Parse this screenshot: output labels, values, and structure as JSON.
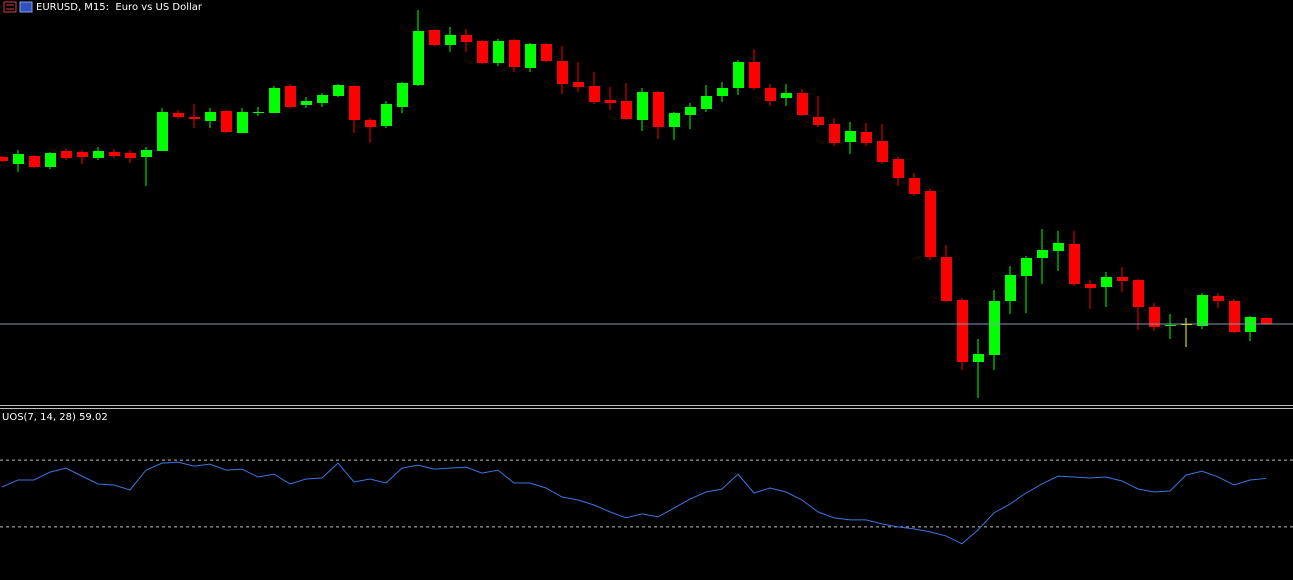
{
  "chart_data": [
    {
      "type": "candlestick",
      "title": "EURUSD, M15:  Euro vs US Dollar",
      "ylim": [
        0,
        405
      ],
      "up_color": "#00ff00",
      "down_color": "#ff0000",
      "doji_color": "#ffff00",
      "price_line_color": "#8899aa",
      "open": [
        248,
        241,
        249,
        238,
        254,
        253,
        247,
        253,
        252,
        248,
        254,
        292,
        288,
        284,
        294,
        272,
        292,
        292,
        319,
        300,
        302,
        309,
        319,
        285,
        279,
        298,
        320,
        375,
        360,
        370,
        364,
        342,
        365,
        337,
        361,
        344,
        323,
        319,
        305,
        304,
        285,
        313,
        278,
        290,
        296,
        309,
        317,
        343,
        317,
        307,
        312,
        288,
        281,
        263,
        273,
        264,
        246,
        227,
        214,
        148,
        105,
        43,
        50,
        104,
        129,
        147,
        154,
        161,
        121,
        118,
        128,
        125,
        98,
        79,
        81,
        79,
        109,
        104,
        73,
        87
      ],
      "high": [
        249,
        255,
        250,
        253,
        256,
        255,
        258,
        256,
        255,
        258,
        297,
        295,
        301,
        297,
        295,
        297,
        298,
        319,
        321,
        308,
        312,
        321,
        320,
        287,
        304,
        323,
        395,
        376,
        378,
        376,
        365,
        366,
        366,
        362,
        362,
        359,
        343,
        333,
        318,
        322,
        317,
        314,
        293,
        302,
        320,
        323,
        345,
        356,
        321,
        321,
        316,
        309,
        287,
        283,
        282,
        281,
        248,
        232,
        216,
        160,
        107,
        66,
        115,
        139,
        149,
        176,
        174,
        174,
        125,
        133,
        138,
        126,
        102,
        91,
        87,
        112,
        112,
        106,
        89,
        88
      ],
      "low": [
        243,
        233,
        237,
        236,
        245,
        241,
        245,
        247,
        242,
        219,
        254,
        286,
        277,
        277,
        272,
        272,
        289,
        292,
        297,
        297,
        298,
        308,
        272,
        262,
        277,
        292,
        319,
        359,
        353,
        353,
        341,
        339,
        333,
        333,
        343,
        311,
        313,
        301,
        295,
        285,
        274,
        266,
        265,
        276,
        293,
        303,
        310,
        315,
        299,
        299,
        289,
        278,
        259,
        251,
        259,
        241,
        219,
        209,
        145,
        103,
        35,
        7,
        35,
        91,
        92,
        121,
        134,
        119,
        96,
        98,
        113,
        75,
        74,
        66,
        58,
        76,
        97,
        72,
        64,
        80
      ],
      "close": [
        244,
        251,
        238,
        252,
        247,
        248,
        254,
        249,
        247,
        255,
        293,
        288,
        286,
        293,
        273,
        293,
        293,
        317,
        298,
        304,
        310,
        320,
        285,
        278,
        301,
        322,
        374,
        360,
        370,
        363,
        342,
        364,
        338,
        361,
        344,
        321,
        318,
        303,
        302,
        286,
        313,
        278,
        292,
        298,
        309,
        317,
        343,
        317,
        304,
        312,
        290,
        280,
        262,
        274,
        262,
        243,
        227,
        211,
        148,
        104,
        43,
        51,
        104,
        130,
        147,
        155,
        162,
        121,
        117,
        128,
        124,
        98,
        78,
        80,
        81,
        110,
        104,
        73,
        88,
        81
      ]
    },
    {
      "type": "line",
      "ylim": [
        0,
        100
      ],
      "levels": [
        70,
        30
      ],
      "series": [
        {
          "name": "UOS(7, 14, 28)",
          "color": "#3d74e0",
          "values": [
            53.9,
            58.1,
            58.1,
            62.8,
            65.2,
            60.4,
            55.7,
            55.1,
            52.1,
            64.0,
            68.2,
            68.8,
            66.4,
            67.6,
            64.0,
            64.6,
            59.9,
            61.6,
            55.7,
            58.7,
            59.3,
            68.2,
            56.9,
            58.7,
            56.3,
            65.2,
            67.0,
            64.6,
            65.2,
            65.8,
            62.2,
            64.0,
            56.3,
            56.3,
            53.3,
            47.9,
            46.1,
            43.1,
            39.0,
            35.4,
            37.8,
            36.0,
            41.3,
            46.7,
            50.9,
            52.7,
            61.6,
            50.3,
            53.3,
            50.9,
            46.1,
            39.0,
            35.4,
            34.2,
            34.2,
            31.8,
            30.0,
            28.8,
            27.0,
            24.6,
            19.9,
            28.2,
            38.4,
            43.7,
            50.3,
            55.7,
            60.4,
            59.9,
            59.3,
            59.9,
            57.5,
            52.7,
            50.9,
            51.5,
            61.0,
            63.4,
            59.9,
            55.1,
            58.1,
            59.02
          ]
        }
      ]
    }
  ]
}
